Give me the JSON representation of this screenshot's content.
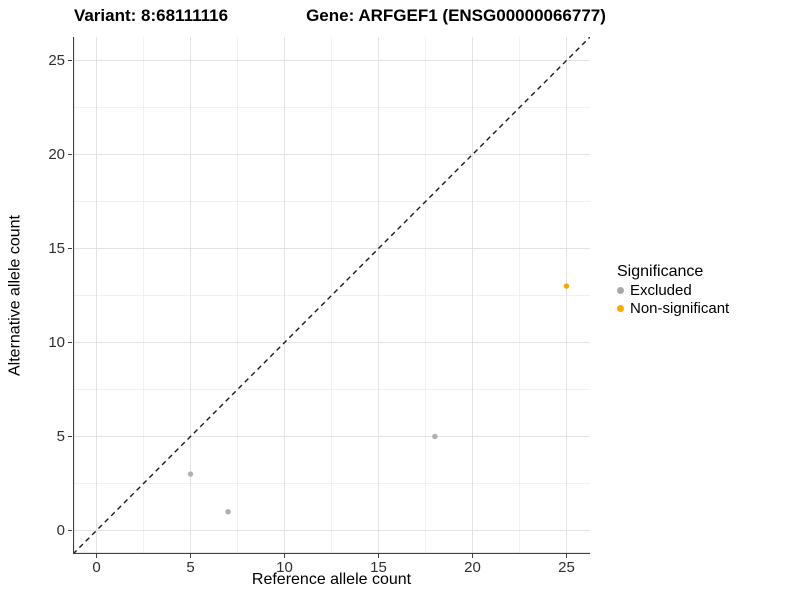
{
  "chart_data": {
    "type": "scatter",
    "title_left": "Variant: 8:68111116",
    "title_right": "Gene: ARFGEF1 (ENSG00000066777)",
    "xlabel": "Reference allele count",
    "ylabel": "Alternative allele count",
    "xlim": [
      -1.25,
      26.25
    ],
    "ylim": [
      -1.25,
      26.25
    ],
    "x_ticks": [
      0,
      5,
      10,
      15,
      20,
      25
    ],
    "y_ticks": [
      0,
      5,
      10,
      15,
      20,
      25
    ],
    "x_minor_ticks": [
      2.5,
      7.5,
      12.5,
      17.5,
      22.5
    ],
    "y_minor_ticks": [
      2.5,
      7.5,
      12.5,
      17.5,
      22.5
    ],
    "grid": true,
    "series": [
      {
        "name": "Excluded",
        "color": "#b0b0b0",
        "points": [
          {
            "x": 5,
            "y": 3
          },
          {
            "x": 7,
            "y": 1
          },
          {
            "x": 18,
            "y": 5
          }
        ]
      },
      {
        "name": "Non-significant",
        "color": "#ffa500",
        "points": [
          {
            "x": 25,
            "y": 13
          }
        ]
      }
    ],
    "reference_line": {
      "type": "identity",
      "style": "dashed",
      "color": "#1a1a1a"
    },
    "legend": {
      "title": "Significance",
      "position": "right",
      "entries": [
        {
          "label": "Excluded",
          "color": "#a8a8a8"
        },
        {
          "label": "Non-significant",
          "color": "#ffa500"
        }
      ]
    },
    "colors": {
      "background": "#ffffff",
      "grid_major": "#e3e3e3",
      "grid_minor": "#f0f0f0",
      "axis_line": "#404040",
      "tick_label": "#303030"
    }
  }
}
